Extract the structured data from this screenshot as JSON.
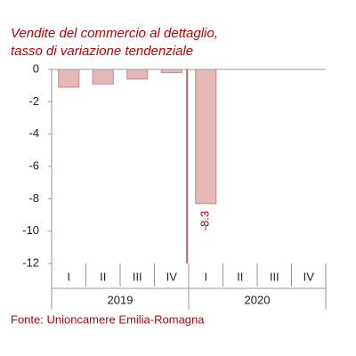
{
  "chart_data": {
    "type": "bar",
    "title_lines": [
      "Vendite del commercio al dettaglio,",
      "tasso di variazione tendenziale"
    ],
    "categories": [
      "I",
      "II",
      "III",
      "IV",
      "I",
      "II",
      "III",
      "IV"
    ],
    "group_labels": [
      "2019",
      "2020"
    ],
    "values": [
      -1.1,
      -0.9,
      -0.6,
      -0.2,
      -8.3,
      null,
      null,
      null
    ],
    "value_labels": [
      null,
      null,
      null,
      null,
      "-8.3",
      null,
      null,
      null
    ],
    "color": "#e6b9b8",
    "edge_color": "#c08a89",
    "ylim": [
      -12,
      0
    ],
    "yticks": [
      0,
      -2,
      -4,
      -6,
      -8,
      -10,
      -12
    ],
    "source": "Fonte: Unioncamere Emilia-Romagna"
  }
}
